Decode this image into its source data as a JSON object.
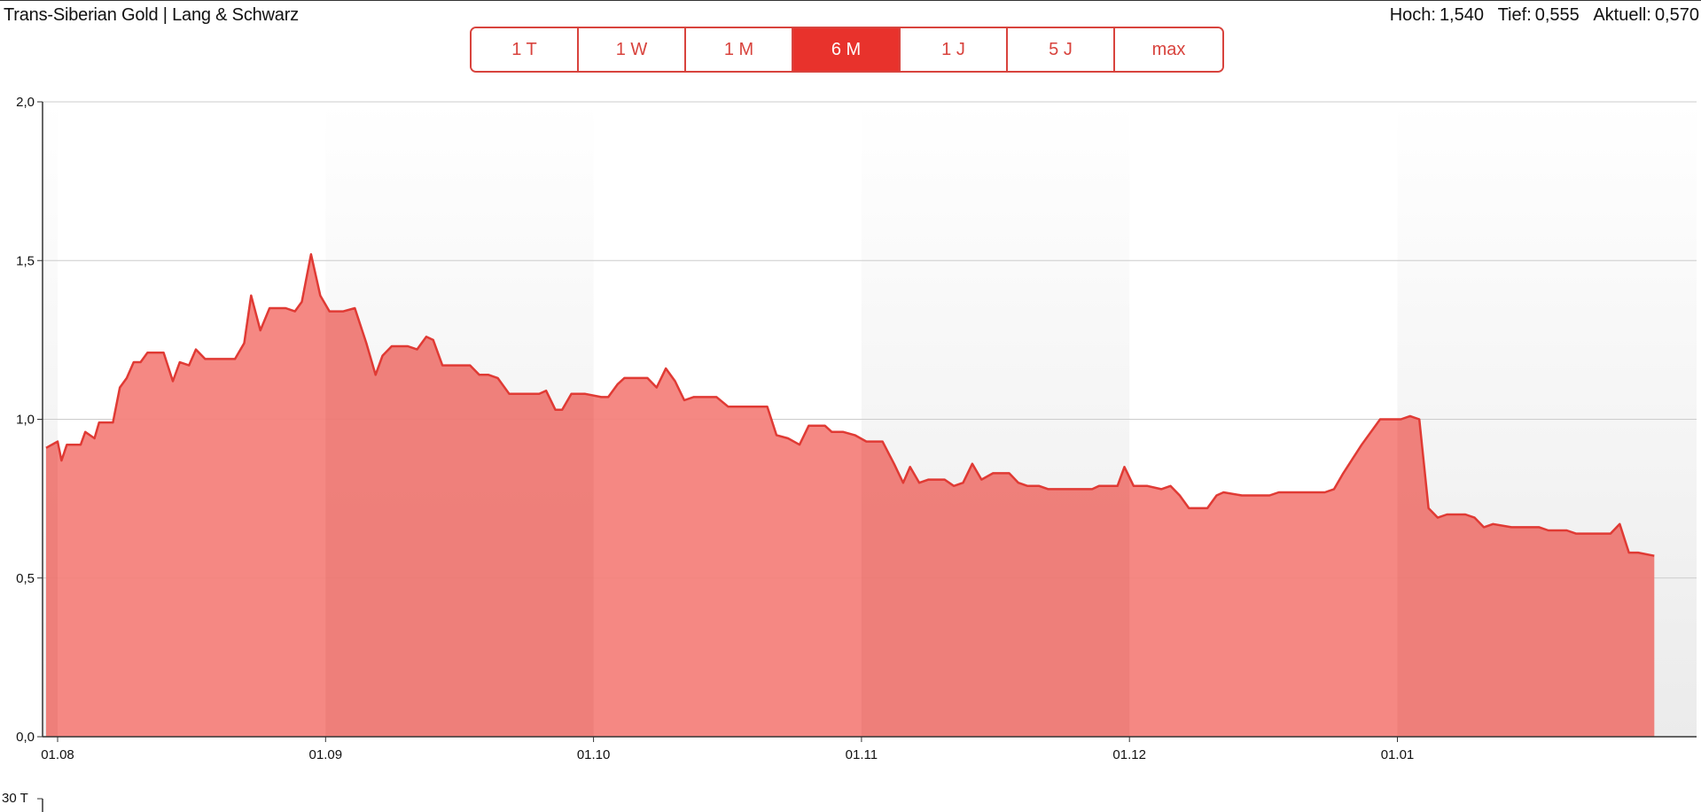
{
  "header": {
    "title": "Trans-Siberian Gold | Lang & Schwarz",
    "stats": [
      {
        "label": "Hoch:",
        "value": "1,540"
      },
      {
        "label": "Tief:",
        "value": "0,555"
      },
      {
        "label": "Aktuell:",
        "value": "0,570"
      }
    ]
  },
  "ranges": [
    {
      "label": "1 T",
      "active": false
    },
    {
      "label": "1 W",
      "active": false
    },
    {
      "label": "1 M",
      "active": false
    },
    {
      "label": "6 M",
      "active": true
    },
    {
      "label": "1 J",
      "active": false
    },
    {
      "label": "5 J",
      "active": false
    },
    {
      "label": "max",
      "active": false
    }
  ],
  "volume_axis": {
    "tick_label": "30 T"
  },
  "colors": {
    "accent": "#e8322c",
    "area_fill": "#f47f7a",
    "line": "#e03a34",
    "band": "#ebebeb"
  },
  "chart_data": {
    "type": "area",
    "ylim": [
      0,
      2
    ],
    "y_ticks": [
      "0,0",
      "0,5",
      "1,0",
      "1,5",
      "2,0"
    ],
    "x_ticks": [
      "01.08",
      "01.09",
      "01.10",
      "01.11",
      "01.12",
      "01.01"
    ],
    "grid": "horizontal",
    "legend": "none",
    "series": [
      {
        "points": [
          [
            -0.5,
            0.91
          ],
          [
            0.0,
            0.93
          ],
          [
            0.17,
            0.87
          ],
          [
            0.4,
            0.92
          ],
          [
            1.0,
            0.92
          ],
          [
            1.2,
            0.96
          ],
          [
            1.4,
            0.95
          ],
          [
            1.6,
            0.94
          ],
          [
            1.8,
            0.99
          ],
          [
            2.4,
            0.99
          ],
          [
            2.7,
            1.1
          ],
          [
            3.0,
            1.13
          ],
          [
            3.3,
            1.18
          ],
          [
            3.6,
            1.18
          ],
          [
            3.9,
            1.21
          ],
          [
            4.6,
            1.21
          ],
          [
            5.0,
            1.12
          ],
          [
            5.3,
            1.18
          ],
          [
            5.7,
            1.17
          ],
          [
            6.0,
            1.22
          ],
          [
            6.4,
            1.19
          ],
          [
            7.0,
            1.19
          ],
          [
            7.7,
            1.19
          ],
          [
            8.1,
            1.24
          ],
          [
            8.4,
            1.39
          ],
          [
            8.8,
            1.28
          ],
          [
            9.2,
            1.35
          ],
          [
            9.9,
            1.35
          ],
          [
            10.3,
            1.34
          ],
          [
            10.6,
            1.37
          ],
          [
            11.0,
            1.52
          ],
          [
            11.4,
            1.39
          ],
          [
            11.8,
            1.34
          ],
          [
            12.4,
            1.34
          ],
          [
            12.9,
            1.35
          ],
          [
            13.4,
            1.24
          ],
          [
            13.8,
            1.14
          ],
          [
            14.1,
            1.2
          ],
          [
            14.5,
            1.23
          ],
          [
            15.2,
            1.23
          ],
          [
            15.6,
            1.22
          ],
          [
            16.0,
            1.26
          ],
          [
            16.3,
            1.25
          ],
          [
            16.7,
            1.17
          ],
          [
            17.4,
            1.17
          ],
          [
            17.9,
            1.17
          ],
          [
            18.3,
            1.14
          ],
          [
            18.7,
            1.14
          ],
          [
            19.1,
            1.13
          ],
          [
            19.6,
            1.08
          ],
          [
            20.2,
            1.08
          ],
          [
            20.9,
            1.08
          ],
          [
            21.2,
            1.09
          ],
          [
            21.6,
            1.03
          ],
          [
            21.9,
            1.03
          ],
          [
            22.3,
            1.08
          ],
          [
            22.9,
            1.08
          ],
          [
            23.6,
            1.07
          ],
          [
            23.9,
            1.07
          ],
          [
            24.3,
            1.11
          ],
          [
            24.6,
            1.13
          ],
          [
            25.2,
            1.13
          ],
          [
            25.6,
            1.13
          ],
          [
            26.0,
            1.1
          ],
          [
            26.4,
            1.16
          ],
          [
            26.8,
            1.12
          ],
          [
            27.2,
            1.06
          ],
          [
            27.6,
            1.07
          ],
          [
            28.4,
            1.07
          ],
          [
            28.6,
            1.07
          ],
          [
            29.1,
            1.04
          ],
          [
            30.4,
            1.04
          ],
          [
            30.8,
            1.04
          ],
          [
            31.2,
            0.95
          ],
          [
            31.7,
            0.94
          ],
          [
            32.2,
            0.92
          ],
          [
            32.6,
            0.98
          ],
          [
            33.3,
            0.98
          ],
          [
            33.6,
            0.96
          ],
          [
            34.1,
            0.96
          ],
          [
            34.6,
            0.95
          ],
          [
            35.1,
            0.93
          ],
          [
            35.8,
            0.93
          ],
          [
            36.3,
            0.86
          ],
          [
            36.7,
            0.8
          ],
          [
            37.0,
            0.85
          ],
          [
            37.4,
            0.8
          ],
          [
            37.8,
            0.81
          ],
          [
            38.5,
            0.81
          ],
          [
            38.9,
            0.79
          ],
          [
            39.3,
            0.8
          ],
          [
            39.7,
            0.86
          ],
          [
            40.1,
            0.81
          ],
          [
            40.6,
            0.83
          ],
          [
            41.3,
            0.83
          ],
          [
            41.7,
            0.8
          ],
          [
            42.1,
            0.79
          ],
          [
            42.6,
            0.79
          ],
          [
            43.0,
            0.78
          ],
          [
            43.4,
            0.78
          ],
          [
            44.2,
            0.78
          ],
          [
            44.9,
            0.78
          ],
          [
            45.2,
            0.79
          ],
          [
            46.0,
            0.79
          ],
          [
            46.3,
            0.85
          ],
          [
            46.7,
            0.79
          ],
          [
            47.3,
            0.79
          ],
          [
            47.9,
            0.78
          ],
          [
            48.3,
            0.79
          ],
          [
            48.7,
            0.76
          ],
          [
            49.1,
            0.72
          ],
          [
            49.9,
            0.72
          ],
          [
            50.3,
            0.76
          ],
          [
            50.6,
            0.77
          ],
          [
            51.4,
            0.76
          ],
          [
            52.2,
            0.76
          ],
          [
            52.6,
            0.76
          ],
          [
            53.0,
            0.77
          ],
          [
            53.8,
            0.77
          ],
          [
            54.6,
            0.77
          ],
          [
            55.0,
            0.77
          ],
          [
            55.4,
            0.78
          ],
          [
            55.8,
            0.83
          ],
          [
            56.6,
            0.92
          ],
          [
            57.4,
            1.0
          ],
          [
            58.3,
            1.0
          ],
          [
            58.7,
            1.01
          ],
          [
            59.1,
            1.0
          ],
          [
            59.5,
            0.72
          ],
          [
            59.9,
            0.69
          ],
          [
            60.3,
            0.7
          ],
          [
            61.1,
            0.7
          ],
          [
            61.5,
            0.69
          ],
          [
            61.9,
            0.66
          ],
          [
            62.3,
            0.67
          ],
          [
            63.1,
            0.66
          ],
          [
            63.9,
            0.66
          ],
          [
            64.3,
            0.66
          ],
          [
            64.7,
            0.65
          ],
          [
            65.5,
            0.65
          ],
          [
            65.9,
            0.64
          ],
          [
            66.7,
            0.64
          ],
          [
            67.4,
            0.64
          ],
          [
            67.8,
            0.67
          ],
          [
            68.2,
            0.58
          ],
          [
            68.6,
            0.58
          ],
          [
            69.3,
            0.57
          ]
        ]
      }
    ]
  }
}
